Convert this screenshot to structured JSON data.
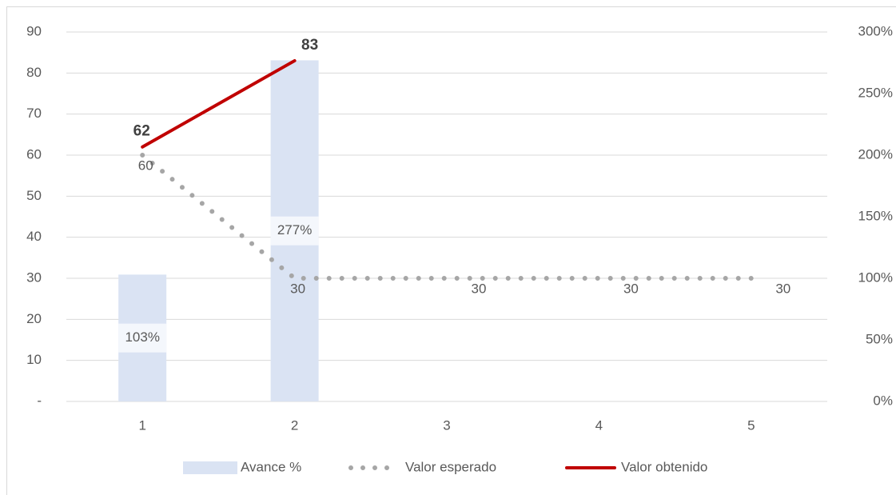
{
  "chart_data": {
    "type": "combo",
    "categories": [
      "1",
      "2",
      "3",
      "4",
      "5"
    ],
    "series": [
      {
        "name": "Avance %",
        "type": "bar",
        "axis": "y2",
        "color": "#dae3f3",
        "values": [
          103,
          277,
          null,
          null,
          null
        ],
        "value_labels": [
          "103%",
          "277%",
          null,
          null,
          null
        ]
      },
      {
        "name": "Valor esperado",
        "type": "line",
        "style": "dotted",
        "color": "#a6a6a6",
        "values": [
          60,
          30,
          30,
          30,
          30
        ]
      },
      {
        "name": "Valor obtenido",
        "type": "line",
        "style": "solid",
        "color": "#c00000",
        "values": [
          62,
          83,
          null,
          null,
          null
        ]
      }
    ],
    "ylim": [
      0,
      90
    ],
    "yticks": [
      {
        "value": 0,
        "label": "-"
      },
      10,
      20,
      30,
      40,
      50,
      60,
      70,
      80,
      90
    ],
    "y2lim": [
      0,
      300
    ],
    "y2ticks": [
      {
        "value": 0,
        "label": "0%"
      },
      {
        "value": 50,
        "label": "50%"
      },
      {
        "value": 100,
        "label": "100%"
      },
      {
        "value": 150,
        "label": "150%"
      },
      {
        "value": 200,
        "label": "200%"
      },
      {
        "value": 250,
        "label": "250%"
      },
      {
        "value": 300,
        "label": "300%"
      }
    ],
    "grid": true,
    "legend": "bottom"
  }
}
